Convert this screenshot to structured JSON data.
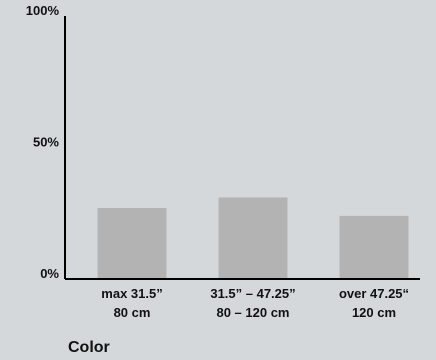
{
  "chart_data": {
    "type": "bar",
    "categories": [
      [
        "max 31.5”",
        "80 cm"
      ],
      [
        "31.5” – 47.25”",
        "80 – 120 cm"
      ],
      [
        "over 47.25“",
        "120 cm"
      ]
    ],
    "values": [
      27,
      31,
      24
    ],
    "yticks": [
      "0%",
      "50%",
      "100%"
    ],
    "ylim": [
      0,
      100
    ],
    "xlabel": "Color",
    "ylabel": "",
    "title": "",
    "grid": false,
    "bar_color": "#b3b3b3",
    "axis_color": "#000000"
  }
}
